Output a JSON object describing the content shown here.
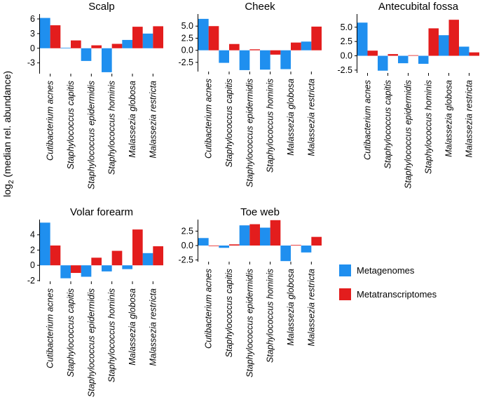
{
  "y_axis_label": "log₂ (median rel. abundance)",
  "legend": {
    "metagenomes": "Metagenomes",
    "metatranscriptomes": "Metatranscriptomes"
  },
  "colors": {
    "metagenomes": "#1f8fef",
    "metatranscriptomes": "#e31d1d"
  },
  "chart_data": [
    {
      "type": "bar",
      "title": "Scalp",
      "categories": [
        "Cutibacterium acnes",
        "Staphylococcus capitis",
        "Staphylococcus epidermidis",
        "Staphylococcus hominis",
        "Malassezia globosa",
        "Malassezia restricta"
      ],
      "series": [
        {
          "name": "Metagenomes",
          "values": [
            6.2,
            0.1,
            -2.6,
            -4.9,
            1.7,
            3.0
          ]
        },
        {
          "name": "Metatranscriptomes",
          "values": [
            4.7,
            1.6,
            0.6,
            0.9,
            4.4,
            4.5
          ]
        }
      ],
      "yticks": [
        -3,
        0,
        3,
        6
      ],
      "ylim": [
        -5.2,
        7
      ]
    },
    {
      "type": "bar",
      "title": "Cheek",
      "categories": [
        "Cutibacterium acnes",
        "Staphylococcus capitis",
        "Staphylococcus epidermidis",
        "Staphylococcus hominis",
        "Malassezia globosa",
        "Malassezia restricta"
      ],
      "series": [
        {
          "name": "Metagenomes",
          "values": [
            6.5,
            -2.6,
            -4.1,
            -4.0,
            -3.9,
            1.8
          ]
        },
        {
          "name": "Metatranscriptomes",
          "values": [
            5.0,
            1.3,
            0.2,
            -0.9,
            1.6,
            4.9
          ]
        }
      ],
      "yticks": [
        -2.5,
        0,
        2.5,
        5.0
      ],
      "ylim": [
        -4.4,
        7.5
      ]
    },
    {
      "type": "bar",
      "title": "Antecubital fossa",
      "categories": [
        "Cutibacterium acnes",
        "Staphylococcus capitis",
        "Staphylococcus epidermidis",
        "Staphylococcus hominis",
        "Malassezia globosa",
        "Malassezia restricta"
      ],
      "series": [
        {
          "name": "Metagenomes",
          "values": [
            5.8,
            -2.6,
            -1.3,
            -1.4,
            3.6,
            1.6
          ]
        },
        {
          "name": "Metatranscriptomes",
          "values": [
            0.9,
            0.3,
            0.1,
            4.8,
            6.3,
            0.6
          ]
        }
      ],
      "yticks": [
        -2.5,
        0,
        2.5,
        5.0
      ],
      "ylim": [
        -3,
        7.3
      ]
    },
    {
      "type": "bar",
      "title": "Volar forearm",
      "categories": [
        "Cutibacterium acnes",
        "Staphylococcus capitis",
        "Staphylococcus epidermidis",
        "Staphylococcus hominis",
        "Malassezia globosa",
        "Malassezia restricta"
      ],
      "series": [
        {
          "name": "Metagenomes",
          "values": [
            5.6,
            -1.7,
            -1.5,
            -0.8,
            -0.5,
            1.6
          ]
        },
        {
          "name": "Metatranscriptomes",
          "values": [
            2.6,
            -1.0,
            1.0,
            1.9,
            4.7,
            2.5
          ]
        }
      ],
      "yticks": [
        -2,
        0,
        2,
        4
      ],
      "ylim": [
        -2.1,
        6
      ]
    },
    {
      "type": "bar",
      "title": "Toe web",
      "categories": [
        "Cutibacterium acnes",
        "Staphylococcus capitis",
        "Staphylococcus epidermidis",
        "Staphylococcus hominis",
        "Malassezia globosa",
        "Malassezia restricta"
      ],
      "series": [
        {
          "name": "Metagenomes",
          "values": [
            1.3,
            -0.4,
            3.5,
            3.1,
            -2.7,
            -1.2
          ]
        },
        {
          "name": "Metatranscriptomes",
          "values": [
            0.0,
            0.2,
            3.7,
            4.4,
            0.1,
            1.5
          ]
        }
      ],
      "yticks": [
        -2.5,
        0,
        2.5
      ],
      "ylim": [
        -2.8,
        4.5
      ]
    }
  ]
}
